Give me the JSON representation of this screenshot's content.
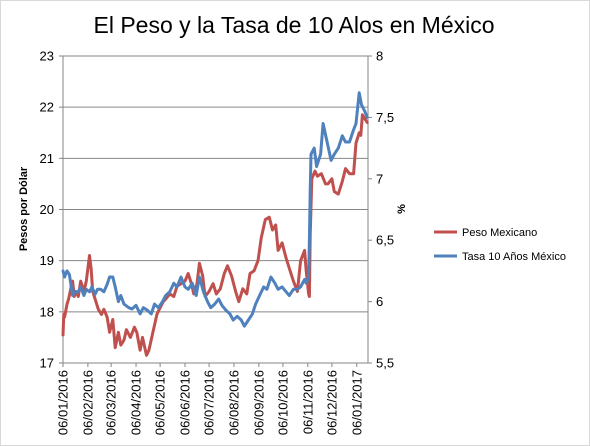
{
  "chart_data": {
    "type": "line",
    "title": "El Peso y la Tasa de 10 Alos en México",
    "ylabel": "Pesos por Dólar",
    "y2label": "%",
    "ylim": [
      17,
      23
    ],
    "y2lim": [
      5.5,
      8
    ],
    "yticks": [
      "17",
      "18",
      "19",
      "20",
      "21",
      "22",
      "23"
    ],
    "y2ticks": [
      "5,5",
      "6",
      "6,5",
      "7",
      "7,5",
      "8"
    ],
    "xlim": [
      "2016-01-06",
      "2017-01-20"
    ],
    "categories": [
      "06/01/2016",
      "06/02/2016",
      "06/03/2016",
      "06/04/2016",
      "06/05/2016",
      "06/06/2016",
      "06/07/2016",
      "06/08/2016",
      "06/09/2016",
      "06/10/2016",
      "06/11/2016",
      "06/12/2016",
      "06/01/2017"
    ],
    "legend_position": "right",
    "grid": true,
    "series": [
      {
        "name": "Peso Mexicano",
        "axis": "left",
        "color": "#c0504d",
        "x": [
          "2016-01-06",
          "2016-01-07",
          "2016-01-08",
          "2016-01-11",
          "2016-01-13",
          "2016-01-15",
          "2016-01-18",
          "2016-01-20",
          "2016-01-22",
          "2016-01-25",
          "2016-01-28",
          "2016-02-01",
          "2016-02-04",
          "2016-02-08",
          "2016-02-10",
          "2016-02-12",
          "2016-02-16",
          "2016-02-19",
          "2016-02-23",
          "2016-02-26",
          "2016-03-01",
          "2016-03-04",
          "2016-03-08",
          "2016-03-11",
          "2016-03-15",
          "2016-03-18",
          "2016-03-22",
          "2016-03-25",
          "2016-03-30",
          "2016-04-04",
          "2016-04-07",
          "2016-04-11",
          "2016-04-14",
          "2016-04-19",
          "2016-04-22",
          "2016-04-27",
          "2016-05-02",
          "2016-05-05",
          "2016-05-10",
          "2016-05-13",
          "2016-05-18",
          "2016-05-23",
          "2016-05-27",
          "2016-06-01",
          "2016-06-06",
          "2016-06-10",
          "2016-06-14",
          "2016-06-17",
          "2016-06-21",
          "2016-06-24",
          "2016-06-28",
          "2016-07-01",
          "2016-07-06",
          "2016-07-11",
          "2016-07-15",
          "2016-07-20",
          "2016-07-25",
          "2016-07-29",
          "2016-08-03",
          "2016-08-08",
          "2016-08-12",
          "2016-08-17",
          "2016-08-22",
          "2016-08-26",
          "2016-08-31",
          "2016-09-05",
          "2016-09-09",
          "2016-09-14",
          "2016-09-19",
          "2016-09-23",
          "2016-09-27",
          "2016-09-30",
          "2016-10-05",
          "2016-10-10",
          "2016-10-14",
          "2016-10-19",
          "2016-10-24",
          "2016-10-28",
          "2016-11-02",
          "2016-11-04",
          "2016-11-07",
          "2016-11-08",
          "2016-11-09",
          "2016-11-11",
          "2016-11-15",
          "2016-11-18",
          "2016-11-23",
          "2016-11-28",
          "2016-12-01",
          "2016-12-06",
          "2016-12-09",
          "2016-12-14",
          "2016-12-19",
          "2016-12-23",
          "2016-12-28",
          "2017-01-02",
          "2017-01-05",
          "2017-01-09",
          "2017-01-11",
          "2017-01-13",
          "2017-01-17",
          "2017-01-19"
        ],
        "values": [
          17.55,
          17.95,
          17.9,
          18.15,
          18.25,
          18.4,
          18.6,
          18.3,
          18.4,
          18.3,
          18.6,
          18.4,
          18.6,
          19.1,
          18.85,
          18.4,
          18.2,
          18.05,
          17.95,
          18.05,
          17.9,
          17.6,
          17.85,
          17.3,
          17.6,
          17.35,
          17.45,
          17.65,
          17.5,
          17.7,
          17.6,
          17.25,
          17.5,
          17.15,
          17.25,
          17.6,
          17.95,
          18.05,
          18.2,
          18.25,
          18.35,
          18.3,
          18.5,
          18.55,
          18.6,
          18.75,
          18.55,
          18.35,
          18.55,
          18.95,
          18.7,
          18.3,
          18.4,
          18.55,
          18.35,
          18.45,
          18.75,
          18.9,
          18.7,
          18.4,
          18.2,
          18.45,
          18.35,
          18.75,
          18.8,
          19.0,
          19.45,
          19.8,
          19.85,
          19.6,
          19.7,
          19.2,
          19.35,
          19.05,
          18.85,
          18.6,
          18.4,
          19.0,
          19.2,
          18.8,
          18.35,
          18.3,
          19.5,
          20.6,
          20.75,
          20.65,
          20.7,
          20.5,
          20.5,
          20.6,
          20.35,
          20.3,
          20.55,
          20.8,
          20.7,
          20.7,
          21.3,
          21.5,
          21.45,
          21.85,
          21.75,
          21.7
        ]
      },
      {
        "name": "Tasa 10 Años México",
        "axis": "right",
        "color": "#4f81bd",
        "x": [
          "2016-01-06",
          "2016-01-08",
          "2016-01-11",
          "2016-01-14",
          "2016-01-18",
          "2016-01-21",
          "2016-01-25",
          "2016-01-28",
          "2016-02-01",
          "2016-02-04",
          "2016-02-08",
          "2016-02-11",
          "2016-02-15",
          "2016-02-18",
          "2016-02-22",
          "2016-02-26",
          "2016-03-01",
          "2016-03-04",
          "2016-03-08",
          "2016-03-11",
          "2016-03-15",
          "2016-03-18",
          "2016-03-22",
          "2016-03-28",
          "2016-04-01",
          "2016-04-06",
          "2016-04-11",
          "2016-04-15",
          "2016-04-20",
          "2016-04-25",
          "2016-04-29",
          "2016-05-04",
          "2016-05-09",
          "2016-05-13",
          "2016-05-18",
          "2016-05-23",
          "2016-05-27",
          "2016-06-01",
          "2016-06-06",
          "2016-06-10",
          "2016-06-15",
          "2016-06-20",
          "2016-06-24",
          "2016-06-29",
          "2016-07-04",
          "2016-07-08",
          "2016-07-13",
          "2016-07-18",
          "2016-07-22",
          "2016-07-27",
          "2016-08-01",
          "2016-08-05",
          "2016-08-10",
          "2016-08-15",
          "2016-08-19",
          "2016-08-24",
          "2016-08-29",
          "2016-09-02",
          "2016-09-07",
          "2016-09-12",
          "2016-09-16",
          "2016-09-21",
          "2016-09-26",
          "2016-09-30",
          "2016-10-05",
          "2016-10-10",
          "2016-10-14",
          "2016-10-19",
          "2016-10-24",
          "2016-10-28",
          "2016-11-02",
          "2016-11-04",
          "2016-11-07",
          "2016-11-08",
          "2016-11-09",
          "2016-11-10",
          "2016-11-14",
          "2016-11-17",
          "2016-11-22",
          "2016-11-25",
          "2016-11-30",
          "2016-12-05",
          "2016-12-09",
          "2016-12-14",
          "2016-12-19",
          "2016-12-23",
          "2016-12-28",
          "2017-01-02",
          "2017-01-05",
          "2017-01-09",
          "2017-01-12",
          "2017-01-16",
          "2017-01-19"
        ],
        "values": [
          6.25,
          6.2,
          6.25,
          6.22,
          6.05,
          6.08,
          6.08,
          6.12,
          6.05,
          6.1,
          6.08,
          6.12,
          6.06,
          6.1,
          6.1,
          6.08,
          6.14,
          6.2,
          6.2,
          6.12,
          6.0,
          6.05,
          5.98,
          5.95,
          5.94,
          5.97,
          5.9,
          5.95,
          5.93,
          5.9,
          5.98,
          5.95,
          6.0,
          6.05,
          6.08,
          6.15,
          6.12,
          6.2,
          6.12,
          6.1,
          6.15,
          6.05,
          6.2,
          6.08,
          6.0,
          5.95,
          5.98,
          6.02,
          5.97,
          5.93,
          5.9,
          5.85,
          5.88,
          5.85,
          5.8,
          5.85,
          5.9,
          5.98,
          6.05,
          6.12,
          6.1,
          6.2,
          6.15,
          6.1,
          6.12,
          6.08,
          6.05,
          6.1,
          6.1,
          6.12,
          6.18,
          6.15,
          6.2,
          6.5,
          6.9,
          7.2,
          7.25,
          7.1,
          7.2,
          7.45,
          7.3,
          7.15,
          7.2,
          7.25,
          7.35,
          7.3,
          7.3,
          7.4,
          7.45,
          7.7,
          7.6,
          7.55,
          7.5
        ]
      }
    ]
  }
}
